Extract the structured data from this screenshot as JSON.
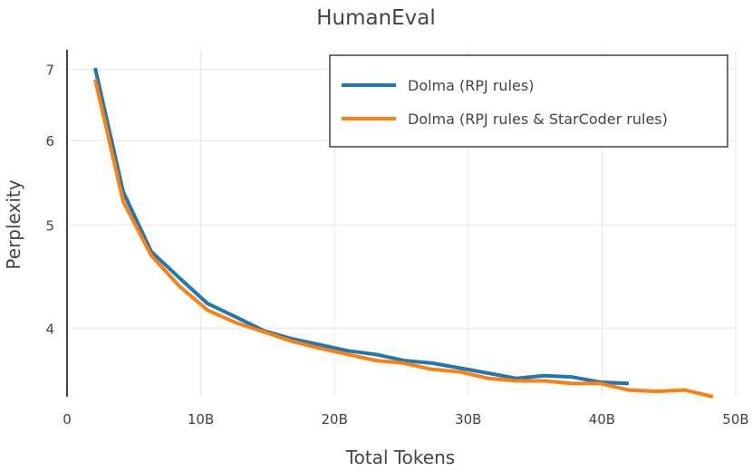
{
  "chart_data": {
    "type": "line",
    "title": "HumanEval",
    "xlabel": "Total Tokens",
    "ylabel": "Perplexity",
    "y_scale": "log",
    "xlim": [
      0,
      50
    ],
    "ylim": [
      3.45,
      7.3
    ],
    "x_ticks": [
      0,
      10,
      20,
      30,
      40,
      50
    ],
    "x_tick_labels": [
      "0",
      "10B",
      "20B",
      "30B",
      "40B",
      "50B"
    ],
    "y_ticks": [
      4,
      5,
      6,
      7
    ],
    "y_tick_labels": [
      "4",
      "5",
      "6",
      "7"
    ],
    "grid": true,
    "legend_position": "top-right",
    "series": [
      {
        "name": "Dolma (RPJ rules)",
        "color": "#1f77b4",
        "x": [
          2.1,
          4.2,
          6.3,
          8.4,
          10.5,
          12.6,
          14.7,
          16.8,
          18.9,
          21.0,
          23.1,
          25.2,
          27.3,
          29.4,
          31.5,
          33.6,
          35.7,
          37.8,
          39.9,
          42.0
        ],
        "y": [
          7.02,
          5.37,
          4.72,
          4.46,
          4.22,
          4.1,
          3.98,
          3.91,
          3.86,
          3.81,
          3.78,
          3.73,
          3.71,
          3.67,
          3.63,
          3.59,
          3.61,
          3.6,
          3.56,
          3.55
        ]
      },
      {
        "name": "Dolma (RPJ rules & StarCoder rules)",
        "color": "#ff7f0e",
        "x": [
          2.1,
          4.2,
          6.3,
          8.4,
          10.5,
          12.6,
          14.7,
          16.8,
          18.9,
          21.0,
          23.1,
          25.2,
          27.3,
          29.4,
          31.5,
          33.6,
          35.7,
          37.8,
          39.9,
          42.0,
          44.1,
          46.2,
          48.3
        ],
        "y": [
          6.85,
          5.26,
          4.68,
          4.38,
          4.16,
          4.05,
          3.97,
          3.89,
          3.83,
          3.78,
          3.73,
          3.71,
          3.66,
          3.64,
          3.59,
          3.57,
          3.57,
          3.55,
          3.55,
          3.5,
          3.49,
          3.5,
          3.45
        ]
      }
    ]
  }
}
